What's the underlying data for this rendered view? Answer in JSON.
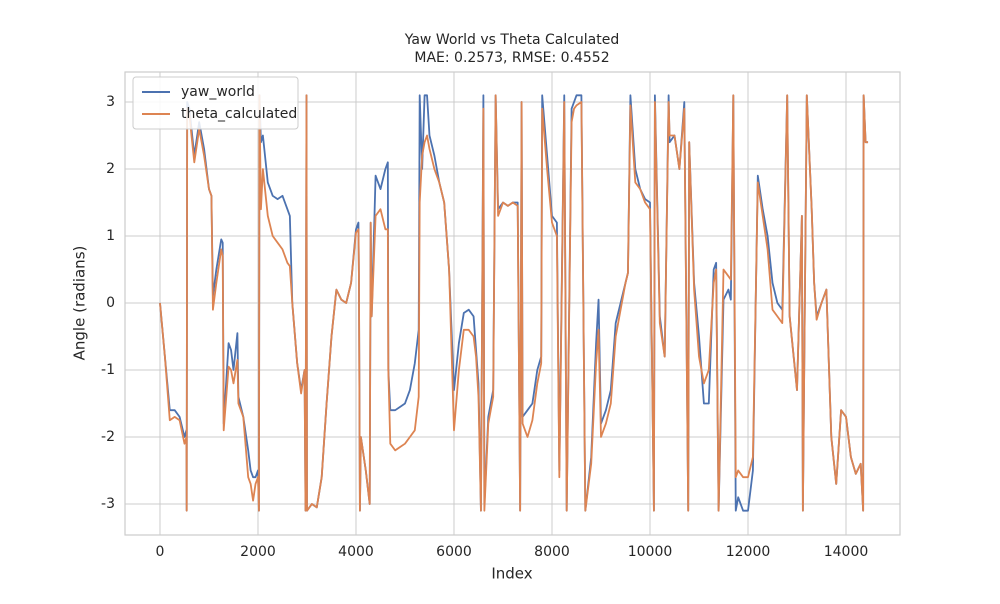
{
  "chart_data": {
    "type": "line",
    "title": "Yaw World vs Theta Calculated",
    "subtitle": "MAE: 0.2573, RMSE: 0.4552",
    "x_label": "Index",
    "y_label": "Angle (radians)",
    "x": [
      0,
      100,
      200,
      300,
      400,
      500,
      540,
      545,
      555,
      600,
      700,
      800,
      900,
      1000,
      1050,
      1080,
      1150,
      1250,
      1280,
      1300,
      1400,
      1450,
      1500,
      1580,
      1600,
      1700,
      1800,
      1850,
      1900,
      1950,
      2000,
      2020,
      2030,
      2060,
      2100,
      2200,
      2300,
      2400,
      2500,
      2600,
      2650,
      2700,
      2800,
      2880,
      2950,
      2970,
      2990,
      3000,
      3100,
      3200,
      3300,
      3400,
      3500,
      3600,
      3700,
      3800,
      3900,
      4000,
      4050,
      4060,
      4080,
      4100,
      4200,
      4280,
      4300,
      4320,
      4400,
      4500,
      4600,
      4650,
      4660,
      4700,
      4800,
      4900,
      5000,
      5100,
      5200,
      5280,
      5300,
      5350,
      5400,
      5450,
      5500,
      5600,
      5700,
      5800,
      5900,
      6000,
      6100,
      6200,
      6300,
      6400,
      6450,
      6500,
      6550,
      6600,
      6620,
      6700,
      6800,
      6850,
      6900,
      7000,
      7100,
      7200,
      7300,
      7350,
      7380,
      7400,
      7500,
      7600,
      7700,
      7780,
      7800,
      7900,
      8000,
      8100,
      8150,
      8250,
      8300,
      8400,
      8450,
      8500,
      8600,
      8680,
      8800,
      8900,
      8950,
      9000,
      9100,
      9200,
      9300,
      9400,
      9500,
      9550,
      9600,
      9700,
      9800,
      9900,
      10000,
      10080,
      10100,
      10200,
      10300,
      10380,
      10400,
      10500,
      10600,
      10700,
      10780,
      10800,
      10900,
      11000,
      11100,
      11200,
      11300,
      11350,
      11400,
      11500,
      11600,
      11650,
      11700,
      11750,
      11800,
      11900,
      12000,
      12100,
      12200,
      12300,
      12400,
      12500,
      12600,
      12700,
      12800,
      12850,
      13000,
      13100,
      13120,
      13200,
      13300,
      13350,
      13400,
      13500,
      13600,
      13700,
      13800,
      13900,
      14000,
      14100,
      14200,
      14300,
      14350,
      14360,
      14400,
      14450
    ],
    "series": [
      {
        "name": "yaw_world",
        "color": "#4c72b0",
        "values": [
          0,
          -0.8,
          -1.6,
          -1.6,
          -1.7,
          -2.0,
          -1.9,
          -3.1,
          3.0,
          2.9,
          2.2,
          2.7,
          2.3,
          1.7,
          1.6,
          0.1,
          0.5,
          0.95,
          0.9,
          -1.8,
          -0.6,
          -0.7,
          -1.0,
          -0.45,
          -1.4,
          -1.7,
          -2.2,
          -2.5,
          -2.6,
          -2.6,
          -2.5,
          -3.1,
          3.1,
          2.4,
          2.5,
          1.8,
          1.6,
          1.55,
          1.6,
          1.4,
          1.3,
          0.0,
          -0.9,
          -1.3,
          -1.0,
          -3.1,
          3.1,
          -3.1,
          -3.0,
          -3.05,
          -2.6,
          -1.5,
          -0.5,
          0.2,
          0.05,
          0,
          0.3,
          1.1,
          1.2,
          0.4,
          -3.1,
          -2.0,
          -2.5,
          -3.0,
          1.2,
          -0.2,
          1.9,
          1.7,
          2.0,
          2.1,
          -1.0,
          -1.6,
          -1.6,
          -1.55,
          -1.5,
          -1.3,
          -0.9,
          -0.4,
          3.1,
          2.0,
          3.1,
          3.1,
          2.5,
          2.2,
          1.8,
          1.5,
          0.5,
          -1.3,
          -0.6,
          -0.15,
          -0.1,
          -0.2,
          -0.7,
          -1.2,
          -3.1,
          3.1,
          -3.0,
          -1.7,
          -1.3,
          3.1,
          1.4,
          1.5,
          1.45,
          1.5,
          1.5,
          -3.1,
          3.0,
          -1.7,
          -1.6,
          -1.5,
          -1.0,
          -0.8,
          3.1,
          2.2,
          1.3,
          1.2,
          -2.5,
          3.1,
          -3.1,
          2.9,
          3.0,
          3.1,
          3.1,
          -3.1,
          -2.3,
          -0.6,
          0.05,
          -1.8,
          -1.6,
          -1.3,
          -0.3,
          0.0,
          0.3,
          0.45,
          3.1,
          2.0,
          1.7,
          1.55,
          1.5,
          -3.1,
          3.1,
          -0.2,
          -0.8,
          3.1,
          2.4,
          2.5,
          2.0,
          3.0,
          -3.1,
          2.4,
          0.3,
          -0.5,
          -1.5,
          -1.5,
          0.5,
          0.6,
          -3.1,
          0.05,
          0.2,
          0.05,
          3.1,
          -3.1,
          -2.9,
          -3.1,
          -3.1,
          -2.5,
          1.9,
          1.4,
          1.0,
          0.3,
          0.0,
          -0.1,
          3.1,
          -0.2,
          -1.3,
          1.3,
          -3.1,
          3.1,
          1.4,
          0.3,
          -0.2,
          0.0,
          0.2,
          -2.0,
          -2.7,
          -1.6,
          -1.7,
          -2.3,
          -2.55,
          -2.4,
          -3.1,
          3.1,
          2.4,
          2.4
        ]
      },
      {
        "name": "theta_calculated",
        "color": "#dd8452",
        "values": [
          0,
          -0.8,
          -1.75,
          -1.7,
          -1.75,
          -2.1,
          -2.0,
          -3.1,
          2.9,
          2.8,
          2.1,
          2.6,
          2.2,
          1.7,
          1.6,
          -0.1,
          0.3,
          0.8,
          0.7,
          -1.9,
          -0.95,
          -1.0,
          -1.2,
          -0.85,
          -1.5,
          -1.7,
          -2.6,
          -2.7,
          -2.95,
          -2.7,
          -2.6,
          -3.1,
          3.1,
          1.4,
          2.0,
          1.3,
          1.0,
          0.9,
          0.8,
          0.6,
          0.55,
          0.0,
          -0.9,
          -1.35,
          -1.0,
          -3.1,
          3.1,
          -3.1,
          -3.0,
          -3.05,
          -2.6,
          -1.5,
          -0.5,
          0.2,
          0.05,
          0,
          0.3,
          1.05,
          1.1,
          0.4,
          -3.1,
          -2.0,
          -2.5,
          -3.0,
          1.2,
          -0.2,
          1.3,
          1.4,
          1.1,
          1.1,
          -1.0,
          -2.1,
          -2.2,
          -2.15,
          -2.1,
          -2.0,
          -1.9,
          -1.4,
          1.5,
          2.2,
          2.4,
          2.5,
          2.3,
          2.0,
          1.8,
          1.5,
          0.5,
          -1.9,
          -1.0,
          -0.4,
          -0.4,
          -0.5,
          -0.8,
          -1.4,
          -3.1,
          2.9,
          -3.1,
          -1.8,
          -1.4,
          3.1,
          1.3,
          1.5,
          1.45,
          1.5,
          1.45,
          -3.1,
          3.0,
          -1.8,
          -2.0,
          -1.75,
          -1.2,
          -0.9,
          2.9,
          2.0,
          1.2,
          1.0,
          -2.6,
          3.0,
          -3.1,
          2.7,
          2.9,
          2.95,
          3.0,
          -3.1,
          -2.4,
          -0.9,
          -0.4,
          -2.0,
          -1.8,
          -1.5,
          -0.5,
          -0.1,
          0.3,
          0.45,
          2.95,
          1.8,
          1.7,
          1.5,
          1.4,
          -3.1,
          3.0,
          -0.3,
          -0.8,
          3.0,
          2.5,
          2.5,
          2.0,
          2.9,
          -3.1,
          2.4,
          0.2,
          -0.8,
          -1.2,
          -1.0,
          0.3,
          0.5,
          -3.1,
          0.5,
          0.4,
          0.35,
          3.1,
          -2.6,
          -2.5,
          -2.6,
          -2.6,
          -2.3,
          1.8,
          1.3,
          0.8,
          -0.1,
          -0.2,
          -0.3,
          3.1,
          -0.2,
          -1.3,
          1.3,
          -3.1,
          3.1,
          1.4,
          0.3,
          -0.25,
          0.0,
          0.2,
          -2.0,
          -2.7,
          -1.6,
          -1.7,
          -2.3,
          -2.55,
          -2.4,
          -3.1,
          3.1,
          2.4,
          2.4
        ]
      }
    ],
    "xlim": [
      -714,
      15102
    ],
    "ylim": [
      -3.463,
      3.448
    ],
    "xticks": [
      0,
      2000,
      4000,
      6000,
      8000,
      10000,
      12000,
      14000
    ],
    "yticks": [
      -3,
      -2,
      -1,
      0,
      1,
      2,
      3
    ],
    "grid": true,
    "legend": "upper left"
  }
}
